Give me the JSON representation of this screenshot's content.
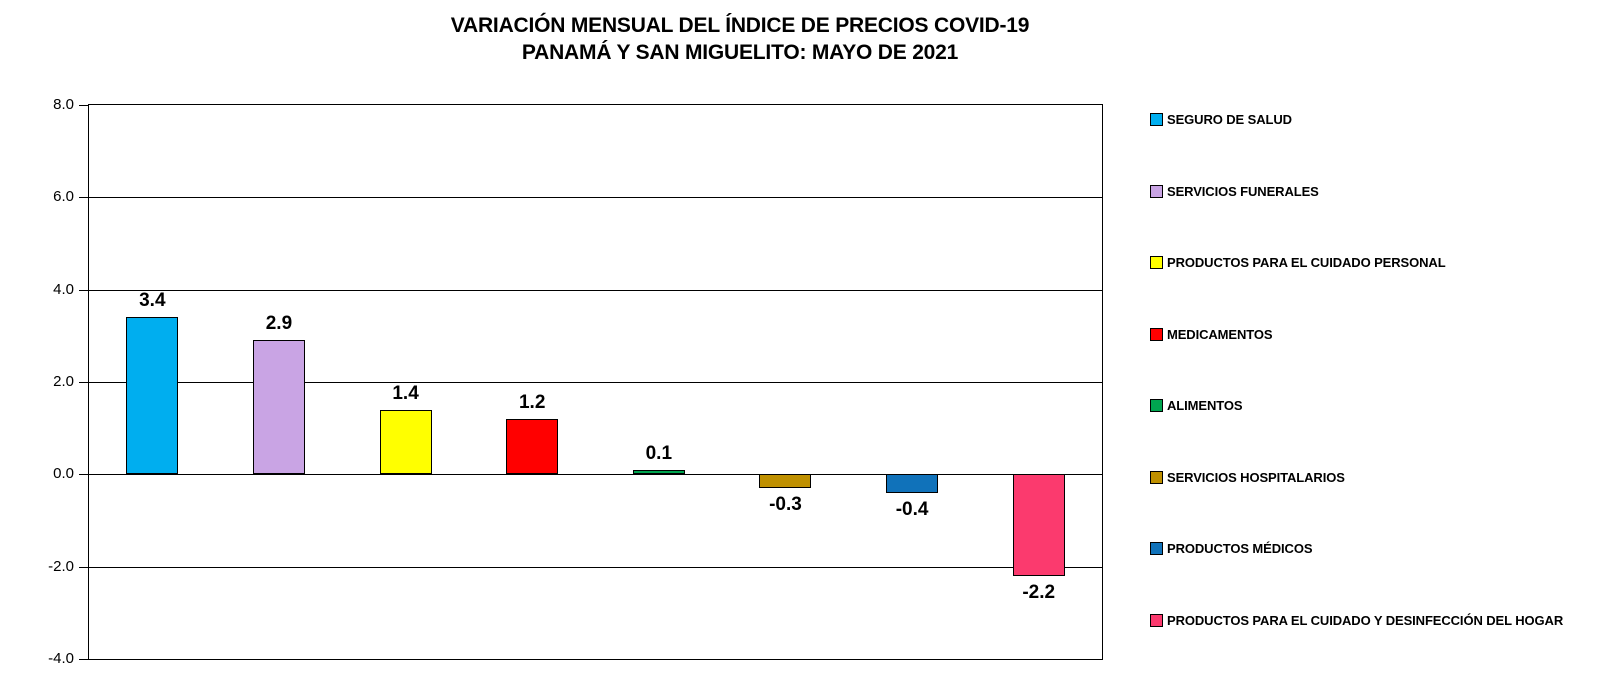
{
  "title": {
    "line1": "VARIACIÓN MENSUAL DEL ÍNDICE DE PRECIOS COVID-19",
    "line2": "PANAMÁ Y SAN MIGUELITO: MAYO DE 2021"
  },
  "chart_data": {
    "type": "bar",
    "title": "VARIACIÓN MENSUAL DEL ÍNDICE DE PRECIOS COVID-19 PANAMÁ Y SAN MIGUELITO: MAYO DE 2021",
    "categories": [
      "SEGURO DE SALUD",
      "SERVICIOS FUNERALES",
      "PRODUCTOS PARA EL CUIDADO PERSONAL",
      "MEDICAMENTOS",
      "ALIMENTOS",
      "SERVICIOS HOSPITALARIOS",
      "PRODUCTOS MÉDICOS",
      "PRODUCTOS PARA EL CUIDADO Y DESINFECCIÓN DEL HOGAR"
    ],
    "values": [
      3.4,
      2.9,
      1.4,
      1.2,
      0.1,
      -0.3,
      -0.4,
      -2.2
    ],
    "value_labels": [
      "3.4",
      "2.9",
      "1.4",
      "1.2",
      "0.1",
      "-0.3",
      "-0.4",
      "-2.2"
    ],
    "colors": [
      "#00AEEF",
      "#C9A4E4",
      "#FFFF00",
      "#FF0000",
      "#00A550",
      "#BF9000",
      "#1072BA",
      "#FB3A6E"
    ],
    "ylim": [
      -4.0,
      8.0
    ],
    "ytick_interval": 2.0,
    "yticks": [
      "8.0",
      "6.0",
      "4.0",
      "2.0",
      "0.0",
      "-2.0",
      "-4.0"
    ],
    "ytick_values": [
      8.0,
      6.0,
      4.0,
      2.0,
      0.0,
      -2.0,
      -4.0
    ],
    "grid": "horizontal",
    "legend_position": "right",
    "bar_border_color": "#000000",
    "text_color": "#000000"
  }
}
